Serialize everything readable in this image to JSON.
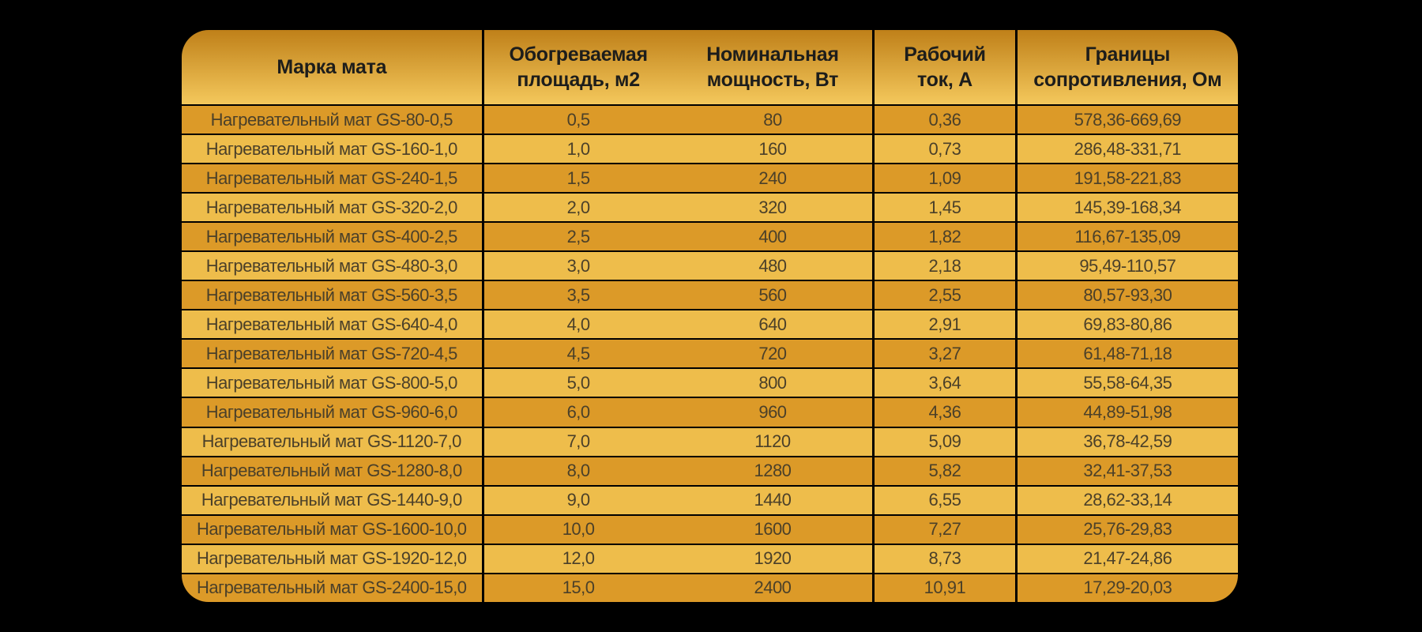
{
  "chart_data": {
    "type": "table",
    "columns": [
      "Марка мата",
      "Обогреваемая\nплощадь, м2",
      "Номинальная\nмощность, Вт",
      "Рабочий\nток, А",
      "Границы\nсопротивления, Ом"
    ],
    "rows": [
      [
        "Нагревательный мат GS-80-0,5",
        "0,5",
        "80",
        "0,36",
        "578,36-669,69"
      ],
      [
        "Нагревательный мат GS-160-1,0",
        "1,0",
        "160",
        "0,73",
        "286,48-331,71"
      ],
      [
        "Нагревательный мат GS-240-1,5",
        "1,5",
        "240",
        "1,09",
        "191,58-221,83"
      ],
      [
        "Нагревательный мат GS-320-2,0",
        "2,0",
        "320",
        "1,45",
        "145,39-168,34"
      ],
      [
        "Нагревательный мат GS-400-2,5",
        "2,5",
        "400",
        "1,82",
        "116,67-135,09"
      ],
      [
        "Нагревательный мат GS-480-3,0",
        "3,0",
        "480",
        "2,18",
        "95,49-110,57"
      ],
      [
        "Нагревательный мат GS-560-3,5",
        "3,5",
        "560",
        "2,55",
        "80,57-93,30"
      ],
      [
        "Нагревательный мат GS-640-4,0",
        "4,0",
        "640",
        "2,91",
        "69,83-80,86"
      ],
      [
        "Нагревательный мат GS-720-4,5",
        "4,5",
        "720",
        "3,27",
        "61,48-71,18"
      ],
      [
        "Нагревательный мат GS-800-5,0",
        "5,0",
        "800",
        "3,64",
        "55,58-64,35"
      ],
      [
        "Нагревательный мат GS-960-6,0",
        "6,0",
        "960",
        "4,36",
        "44,89-51,98"
      ],
      [
        "Нагревательный мат GS-1120-7,0",
        "7,0",
        "1120",
        "5,09",
        "36,78-42,59"
      ],
      [
        "Нагревательный мат GS-1280-8,0",
        "8,0",
        "1280",
        "5,82",
        "32,41-37,53"
      ],
      [
        "Нагревательный мат GS-1440-9,0",
        "9,0",
        "1440",
        "6,55",
        "28,62-33,14"
      ],
      [
        "Нагревательный мат GS-1600-10,0",
        "10,0",
        "1600",
        "7,27",
        "25,76-29,83"
      ],
      [
        "Нагревательный мат GS-1920-12,0",
        "12,0",
        "1920",
        "8,73",
        "21,47-24,86"
      ],
      [
        "Нагревательный мат GS-2400-15,0",
        "15,0",
        "2400",
        "10,91",
        "17,29-20,03"
      ]
    ],
    "layout": {
      "grid": "on",
      "row_striping": "odd-dark, even-light"
    }
  },
  "style": {
    "background": "#000000",
    "header_gradient_top": "#bf8019",
    "header_gradient_bottom": "#f4c85c",
    "row_dark": "#dc9a28",
    "row_light": "#eebd4b",
    "border_color": "#000000",
    "header_text": "#1d1d1b",
    "cell_text": "#4b4029"
  }
}
